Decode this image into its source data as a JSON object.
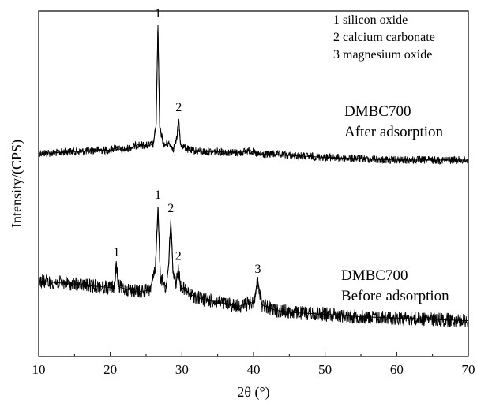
{
  "chart_data": {
    "type": "line",
    "xlabel": "2θ (°)",
    "ylabel": "Intensity/(CPS)",
    "xlim": [
      10,
      70
    ],
    "x_ticks": [
      "10",
      "20",
      "30",
      "40",
      "50",
      "60",
      "70"
    ],
    "grid": false,
    "legend_position": "top-right",
    "legend": [
      "1 silicon oxide",
      "2 calcium carbonate",
      "3 magnesium oxide"
    ],
    "series": [
      {
        "name": "DMBC700 After adsorption",
        "label_lines": [
          "DMBC700",
          "After adsorption"
        ],
        "x": [
          10,
          12,
          14,
          16,
          18,
          20,
          20.8,
          21.5,
          23,
          24,
          25,
          26,
          26.4,
          26.65,
          26.9,
          27.5,
          28.1,
          28.8,
          29.3,
          29.55,
          29.8,
          31,
          33,
          35,
          38,
          39.5,
          40.5,
          43,
          46,
          50,
          55,
          60,
          65,
          70
        ],
        "y": [
          0.1,
          0.1,
          0.11,
          0.11,
          0.12,
          0.12,
          0.14,
          0.12,
          0.14,
          0.16,
          0.15,
          0.16,
          0.3,
          1.0,
          0.28,
          0.15,
          0.17,
          0.13,
          0.2,
          0.34,
          0.16,
          0.12,
          0.11,
          0.11,
          0.1,
          0.12,
          0.09,
          0.09,
          0.08,
          0.07,
          0.06,
          0.05,
          0.05,
          0.05
        ]
      },
      {
        "name": "DMBC700 Before adsorption",
        "label_lines": [
          "DMBC700",
          "Before adsorption"
        ],
        "x": [
          10,
          12,
          14,
          16,
          18,
          20,
          20.6,
          20.85,
          21.1,
          22,
          24,
          25.5,
          26.3,
          26.65,
          27.0,
          27.8,
          28.15,
          28.45,
          28.75,
          29.2,
          29.5,
          29.8,
          31,
          33,
          35,
          38,
          40,
          40.6,
          41.2,
          43,
          46,
          50,
          55,
          60,
          65,
          70
        ],
        "y": [
          0.32,
          0.31,
          0.3,
          0.29,
          0.28,
          0.27,
          0.28,
          0.45,
          0.28,
          0.26,
          0.24,
          0.25,
          0.4,
          0.88,
          0.35,
          0.27,
          0.45,
          0.78,
          0.4,
          0.3,
          0.42,
          0.28,
          0.22,
          0.18,
          0.16,
          0.13,
          0.16,
          0.32,
          0.14,
          0.1,
          0.08,
          0.07,
          0.05,
          0.04,
          0.03,
          0.02
        ]
      }
    ],
    "peak_labels": [
      {
        "series": 0,
        "x": 26.65,
        "label": "1"
      },
      {
        "series": 0,
        "x": 29.55,
        "label": "2"
      },
      {
        "series": 1,
        "x": 20.85,
        "label": "1"
      },
      {
        "series": 1,
        "x": 26.65,
        "label": "1"
      },
      {
        "series": 1,
        "x": 28.45,
        "label": "2"
      },
      {
        "series": 1,
        "x": 29.5,
        "label": "2"
      },
      {
        "series": 1,
        "x": 40.6,
        "label": "3"
      }
    ]
  }
}
